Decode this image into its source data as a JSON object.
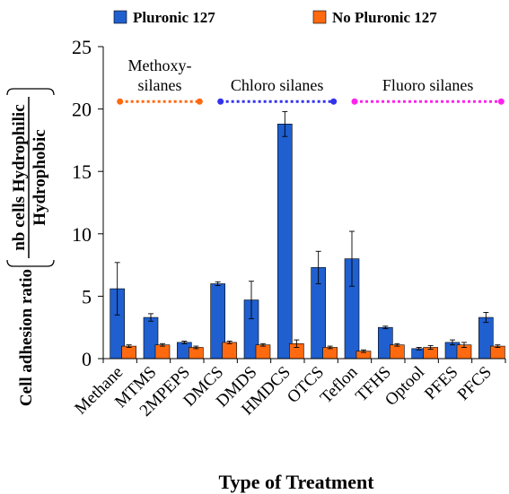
{
  "chart_data": {
    "type": "bar",
    "categories": [
      "Methane",
      "MTMS",
      "2MPEPS",
      "DMCS",
      "DMDS",
      "HMDCS",
      "OTCS",
      "Teflon",
      "TFHS",
      "Optool",
      "PFES",
      "PFCS"
    ],
    "series": [
      {
        "name": "Pluronic 127",
        "color": "#1f5fcf",
        "values": [
          5.6,
          3.3,
          1.3,
          6.0,
          4.7,
          18.8,
          7.3,
          8.0,
          2.5,
          0.8,
          1.3,
          3.3
        ],
        "errors": [
          2.1,
          0.3,
          0.1,
          0.15,
          1.5,
          1.0,
          1.3,
          2.2,
          0.1,
          0.1,
          0.2,
          0.4
        ]
      },
      {
        "name": "No Pluronic 127",
        "color": "#ff6a10",
        "values": [
          1.0,
          1.1,
          0.9,
          1.3,
          1.1,
          1.2,
          0.9,
          0.6,
          1.1,
          0.9,
          1.1,
          1.0
        ],
        "errors": [
          0.1,
          0.1,
          0.1,
          0.1,
          0.1,
          0.3,
          0.1,
          0.1,
          0.1,
          0.15,
          0.2,
          0.1
        ]
      }
    ],
    "ylim": [
      0,
      25
    ],
    "yticks": [
      0,
      5,
      10,
      15,
      20,
      25
    ],
    "xlabel": "Type of Treatment",
    "ylabel_prefix": "Cell adhesion ratio",
    "ylabel_numerator": "nb cells Hydrophilic",
    "ylabel_denominator": "Hydrophobic",
    "legend": "top",
    "annotations": [
      {
        "label_lines": [
          "Methoxy-",
          "silanes"
        ],
        "color": "#ff6a10",
        "level": 20.6,
        "from_category": 0,
        "to_category": 2
      },
      {
        "label_lines": [
          "Chloro silanes"
        ],
        "color": "#3333ee",
        "level": 20.6,
        "from_category": 3,
        "to_category": 6
      },
      {
        "label_lines": [
          "Fluoro silanes"
        ],
        "color": "#ff22ee",
        "level": 20.6,
        "from_category": 7,
        "to_category": 11
      }
    ]
  }
}
